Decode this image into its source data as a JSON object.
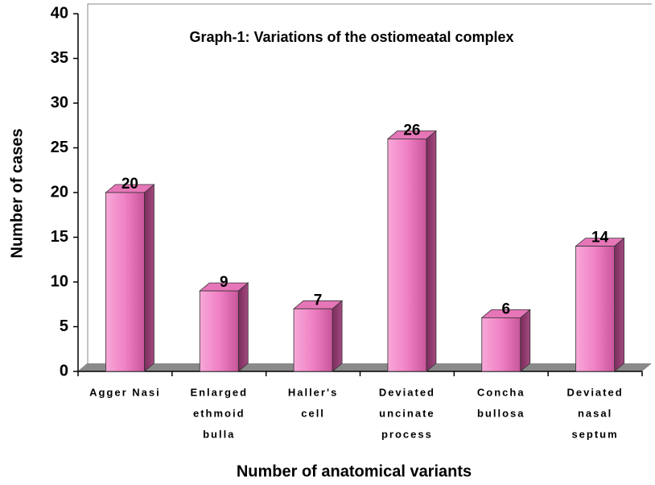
{
  "chart_data": {
    "type": "bar3d",
    "title": "Graph-1: Variations of the ostiomeatal complex",
    "x_label": "Number of anatomical variants",
    "y_label": "Number of cases",
    "categories": [
      [
        "Agger Nasi"
      ],
      [
        "Enlarged",
        "ethmoid",
        "bulla"
      ],
      [
        "Haller's",
        "cell"
      ],
      [
        "Deviated",
        "uncinate",
        "process"
      ],
      [
        "Concha",
        "bullosa"
      ],
      [
        "Deviated",
        "nasal",
        "septum"
      ]
    ],
    "values": [
      20,
      9,
      7,
      26,
      6,
      14
    ],
    "color": "#f08cc8",
    "ylim": [
      0,
      40
    ],
    "yticks": [
      0,
      5,
      10,
      15,
      20,
      25,
      30,
      35,
      40
    ]
  }
}
